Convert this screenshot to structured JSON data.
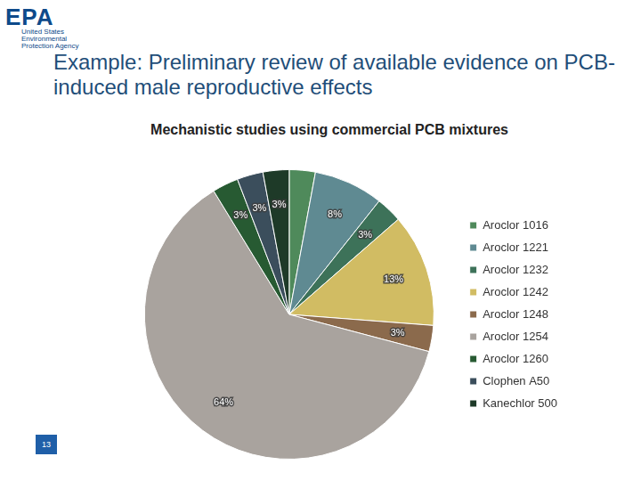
{
  "header": {
    "logo": "EPA",
    "agency": "United States Environmental Protection Agency",
    "title": "Example: Preliminary review of available evidence on PCB-induced male reproductive effects"
  },
  "chart_data": {
    "type": "pie",
    "title": "Mechanistic studies using commercial PCB mixtures",
    "categories": [
      "Aroclor 1016",
      "Aroclor 1221",
      "Aroclor 1232",
      "Aroclor 1242",
      "Aroclor 1248",
      "Aroclor 1254",
      "Aroclor 1260",
      "Clophen A50",
      "Kanechlor 500"
    ],
    "values": [
      3,
      8,
      3,
      13,
      3,
      64,
      3,
      3,
      3
    ],
    "value_labels": [
      null,
      "8%",
      "3%",
      "13%",
      "3%",
      "64%",
      "3%",
      "3%",
      "3%"
    ],
    "colors": [
      "#4f8a5b",
      "#5f8a92",
      "#3d7259",
      "#d1bc63",
      "#8b6a4c",
      "#a9a39e",
      "#275a32",
      "#3b4e5c",
      "#1e3a28"
    ],
    "data_labels": true,
    "legend": "right"
  },
  "page_number": "13"
}
